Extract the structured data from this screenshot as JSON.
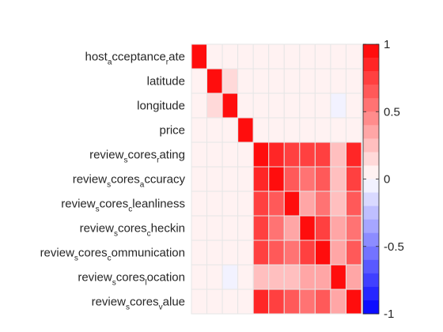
{
  "chart_data": {
    "type": "heatmap",
    "title": "",
    "xlabel": "",
    "ylabel": "",
    "rows": [
      {
        "parts": [
          [
            "host",
            false
          ],
          [
            "a",
            true
          ],
          [
            "cceptance",
            false
          ],
          [
            "r",
            true
          ],
          [
            "ate",
            false
          ]
        ]
      },
      {
        "parts": [
          [
            "latitude",
            false
          ]
        ]
      },
      {
        "parts": [
          [
            "longitude",
            false
          ]
        ]
      },
      {
        "parts": [
          [
            "price",
            false
          ]
        ]
      },
      {
        "parts": [
          [
            "review",
            false
          ],
          [
            "s",
            true
          ],
          [
            "cores",
            false
          ],
          [
            "r",
            true
          ],
          [
            "ating",
            false
          ]
        ]
      },
      {
        "parts": [
          [
            "review",
            false
          ],
          [
            "s",
            true
          ],
          [
            "cores",
            false
          ],
          [
            "a",
            true
          ],
          [
            "ccuracy",
            false
          ]
        ]
      },
      {
        "parts": [
          [
            "review",
            false
          ],
          [
            "s",
            true
          ],
          [
            "cores",
            false
          ],
          [
            "c",
            true
          ],
          [
            "leanliness",
            false
          ]
        ]
      },
      {
        "parts": [
          [
            "review",
            false
          ],
          [
            "s",
            true
          ],
          [
            "cores",
            false
          ],
          [
            "c",
            true
          ],
          [
            "heckin",
            false
          ]
        ]
      },
      {
        "parts": [
          [
            "review",
            false
          ],
          [
            "s",
            true
          ],
          [
            "cores",
            false
          ],
          [
            "c",
            true
          ],
          [
            "ommunication",
            false
          ]
        ]
      },
      {
        "parts": [
          [
            "review",
            false
          ],
          [
            "s",
            true
          ],
          [
            "cores",
            false
          ],
          [
            "l",
            true
          ],
          [
            "ocation",
            false
          ]
        ]
      },
      {
        "parts": [
          [
            "review",
            false
          ],
          [
            "s",
            true
          ],
          [
            "cores",
            false
          ],
          [
            "v",
            true
          ],
          [
            "alue",
            false
          ]
        ]
      }
    ],
    "values": [
      [
        1,
        0,
        0,
        0,
        0,
        0,
        0,
        0,
        0,
        0,
        0
      ],
      [
        0,
        1,
        0.15,
        0,
        0,
        0,
        0,
        0,
        0,
        0,
        0
      ],
      [
        0,
        0.15,
        1,
        0,
        0,
        0,
        0,
        0,
        0,
        -0.08,
        0
      ],
      [
        0,
        0,
        0,
        1,
        0,
        0,
        0,
        0,
        0,
        0,
        0
      ],
      [
        0,
        0,
        0,
        0,
        1,
        0.85,
        0.7,
        0.7,
        0.75,
        0.25,
        0.8
      ],
      [
        0,
        0,
        0,
        0,
        0.85,
        1,
        0.65,
        0.55,
        0.6,
        0.25,
        0.75
      ],
      [
        0,
        0,
        0,
        0,
        0.7,
        0.65,
        1,
        0.4,
        0.5,
        0.25,
        0.65
      ],
      [
        0,
        0,
        0,
        0,
        0.7,
        0.55,
        0.4,
        1,
        0.75,
        0.3,
        0.55
      ],
      [
        0,
        0,
        0,
        0,
        0.75,
        0.6,
        0.5,
        0.75,
        1,
        0.3,
        0.6
      ],
      [
        0,
        0,
        -0.08,
        0,
        0.25,
        0.25,
        0.25,
        0.3,
        0.3,
        1,
        0.3
      ],
      [
        0,
        0,
        0,
        0,
        0.8,
        0.75,
        0.65,
        0.55,
        0.6,
        0.3,
        1
      ]
    ],
    "clim": [
      -1,
      1
    ],
    "colorbar": {
      "ticks": [
        1,
        0.5,
        0,
        -0.5,
        -1
      ],
      "tick_labels": [
        "1",
        "0.5",
        "0",
        "-0.5",
        "-1"
      ],
      "levels": 20
    },
    "colors": {
      "positive": "#ff0000",
      "negative": "#0000ff",
      "neutral": "#ffffff",
      "grid": "#e6e6e6",
      "text": "#262626"
    },
    "grid": true
  }
}
